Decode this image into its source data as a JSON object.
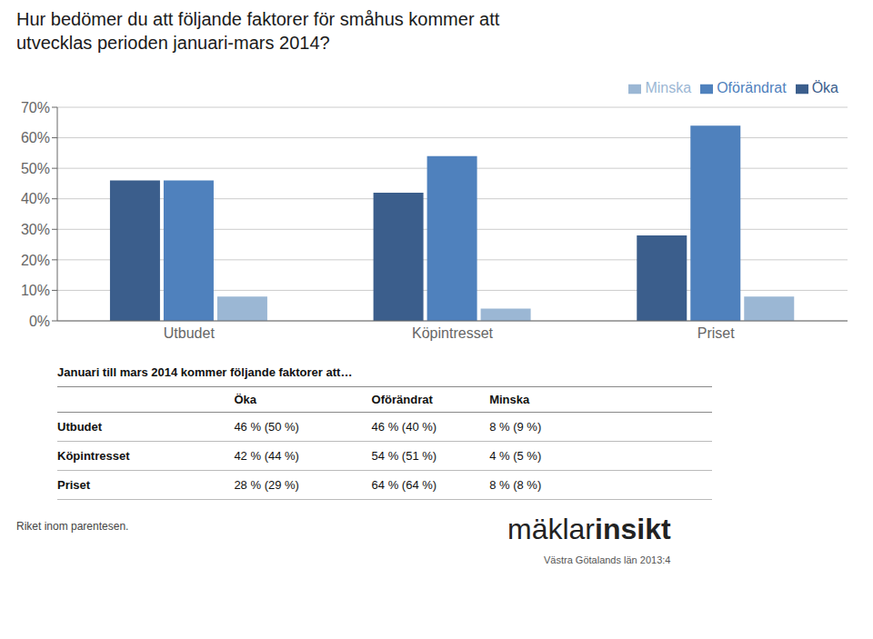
{
  "chart_data": {
    "type": "bar",
    "title": "Hur bedömer du att följande faktorer för småhus kommer att\nutvecklas perioden januari-mars 2014?",
    "categories": [
      "Utbudet",
      "Köpintresset",
      "Priset"
    ],
    "series": [
      {
        "name": "Öka",
        "color": "#3B5E8C",
        "values": [
          0.46,
          0.42,
          0.28
        ]
      },
      {
        "name": "Oförändrat",
        "color": "#4F81BD",
        "values": [
          0.46,
          0.54,
          0.64
        ]
      },
      {
        "name": "Minska",
        "color": "#9BB7D4",
        "values": [
          0.08,
          0.04,
          0.08
        ]
      }
    ],
    "ylim": [
      0,
      0.7
    ],
    "yticks": [
      {
        "value": 0,
        "label": "0%"
      },
      {
        "value": 0.1,
        "label": "10%"
      },
      {
        "value": 0.2,
        "label": "20%"
      },
      {
        "value": 0.3,
        "label": "30%"
      },
      {
        "value": 0.4,
        "label": "40%"
      },
      {
        "value": 0.5,
        "label": "50%"
      },
      {
        "value": 0.6,
        "label": "60%"
      },
      {
        "value": 0.7,
        "label": "70%"
      }
    ],
    "grid": true,
    "legend": "upper right",
    "table": {
      "title": "Januari till mars 2014 kommer följande faktorer att…",
      "headers": [
        "Öka",
        "Oförändrat",
        "Minska"
      ],
      "rows": [
        [
          "Utbudet",
          "46 % (50 %)",
          "46 % (40 %)",
          "8 % (9 %)"
        ],
        [
          "Köpintresset",
          "42 % (44 %)",
          "54 % (51 %)",
          "4 % (5 %)"
        ],
        [
          "Priset",
          "28 % (29 %)",
          "64 % (64 %)",
          "8 % (8 %)"
        ]
      ]
    },
    "footer": {
      "note": "Riket inom parentesen.",
      "logo": [
        "mäklar",
        "insikt"
      ],
      "source": "Västra Götalands län 2013:4"
    }
  }
}
